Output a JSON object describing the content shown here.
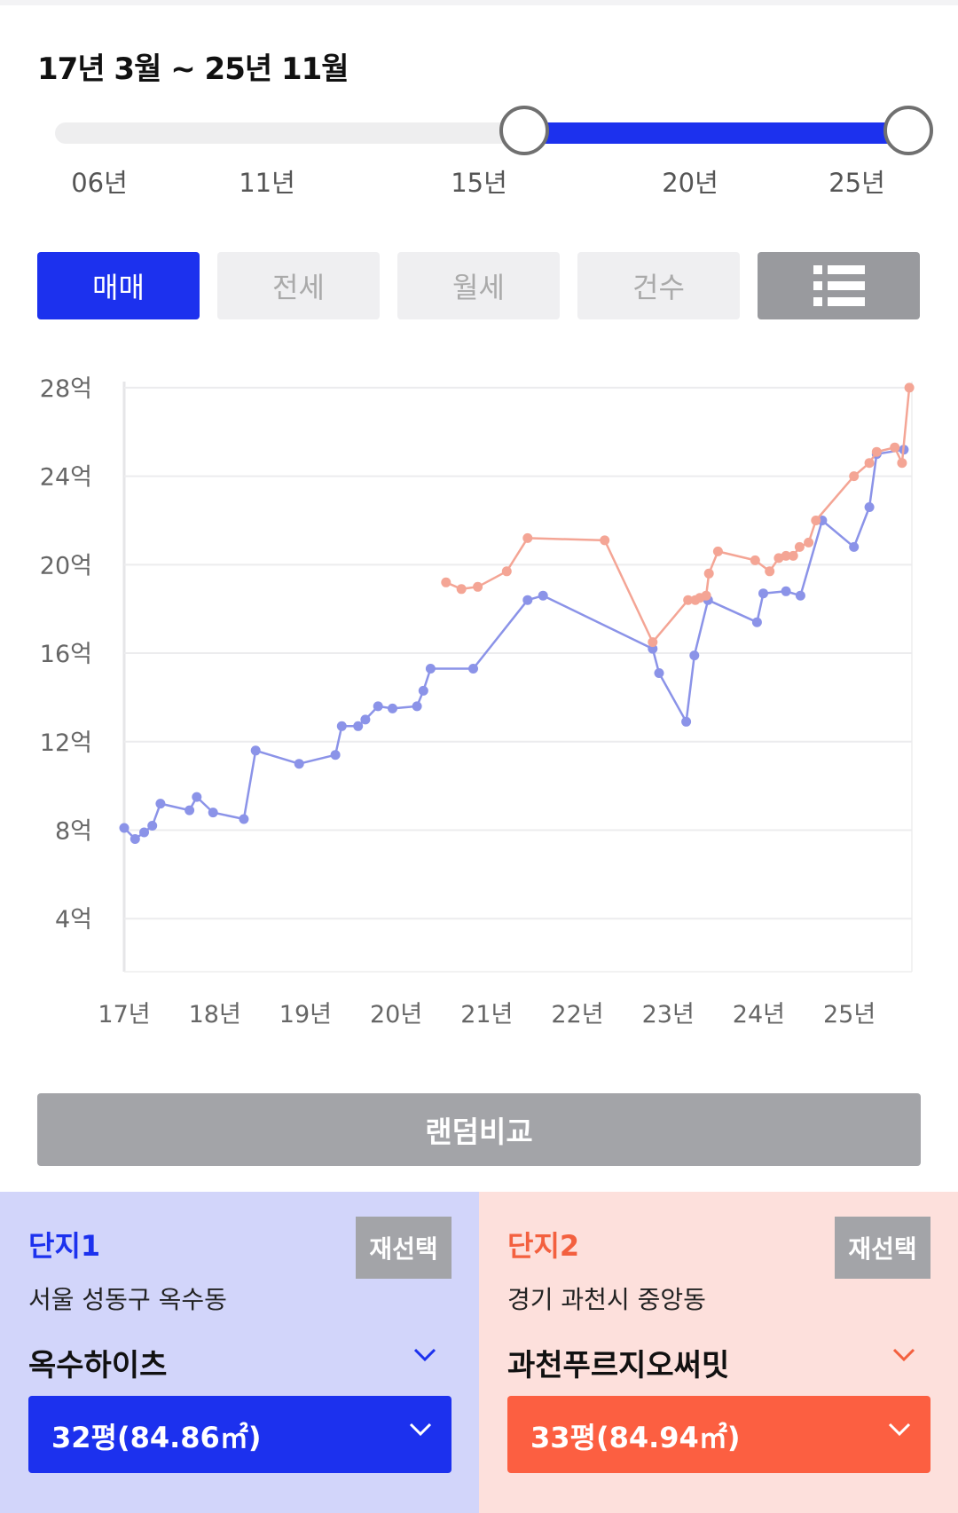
{
  "period_label": "17년 3월 ~ 25년 11월",
  "slider": {
    "labels": [
      "06년",
      "11년",
      "15년",
      "20년",
      "25년"
    ],
    "start_fraction": 0.55,
    "end_fraction": 1.0
  },
  "tabs": [
    {
      "label": "매매",
      "active": true
    },
    {
      "label": "전세",
      "active": false
    },
    {
      "label": "월세",
      "active": false
    },
    {
      "label": "건수",
      "active": false
    }
  ],
  "list_icon": "list-view-icon",
  "colors": {
    "accent": "#1c31ee",
    "accent_orange": "#fc5f41",
    "series1": "#8b93e8",
    "series2": "#f4a595",
    "inactive_tab": "#efeff1",
    "gray_button": "#a3a4a8"
  },
  "chart_data": {
    "type": "line",
    "y_ticks": [
      "28억",
      "24억",
      "20억",
      "16억",
      "12억",
      "8억",
      "4억"
    ],
    "y_tick_values": [
      28,
      24,
      20,
      16,
      12,
      8,
      4
    ],
    "x_ticks": [
      "17년",
      "18년",
      "19년",
      "20년",
      "21년",
      "22년",
      "23년",
      "24년",
      "25년"
    ],
    "x_tick_values": [
      2017,
      2018,
      2019,
      2020,
      2021,
      2022,
      2023,
      2024,
      2025
    ],
    "xlim": [
      2017,
      2025.7
    ],
    "ylim": [
      3,
      29
    ],
    "grid": true,
    "series": [
      {
        "key": "complex1",
        "color": "#8b93e8",
        "points": [
          [
            2017.0,
            8.1
          ],
          [
            2017.12,
            7.6
          ],
          [
            2017.22,
            7.9
          ],
          [
            2017.31,
            8.2
          ],
          [
            2017.4,
            9.2
          ],
          [
            2017.72,
            8.9
          ],
          [
            2017.8,
            9.5
          ],
          [
            2017.98,
            8.8
          ],
          [
            2018.32,
            8.5
          ],
          [
            2018.45,
            11.6
          ],
          [
            2018.93,
            11.0
          ],
          [
            2019.33,
            11.4
          ],
          [
            2019.4,
            12.7
          ],
          [
            2019.58,
            12.7
          ],
          [
            2019.66,
            13.0
          ],
          [
            2019.8,
            13.6
          ],
          [
            2019.96,
            13.5
          ],
          [
            2020.23,
            13.6
          ],
          [
            2020.3,
            14.3
          ],
          [
            2020.38,
            15.3
          ],
          [
            2020.85,
            15.3
          ],
          [
            2021.45,
            18.4
          ],
          [
            2021.62,
            18.6
          ],
          [
            2022.83,
            16.2
          ],
          [
            2022.9,
            15.1
          ],
          [
            2023.2,
            12.9
          ],
          [
            2023.29,
            15.9
          ],
          [
            2023.44,
            18.4
          ],
          [
            2023.98,
            17.4
          ],
          [
            2024.05,
            18.7
          ],
          [
            2024.3,
            18.8
          ],
          [
            2024.46,
            18.6
          ],
          [
            2024.7,
            22.0
          ],
          [
            2025.05,
            20.8
          ],
          [
            2025.22,
            22.6
          ],
          [
            2025.3,
            25.0
          ],
          [
            2025.6,
            25.2
          ]
        ]
      },
      {
        "key": "complex2",
        "color": "#f4a595",
        "points": [
          [
            2020.55,
            19.2
          ],
          [
            2020.72,
            18.9
          ],
          [
            2020.9,
            19.0
          ],
          [
            2021.22,
            19.7
          ],
          [
            2021.45,
            21.2
          ],
          [
            2022.3,
            21.1
          ],
          [
            2022.83,
            16.5
          ],
          [
            2023.22,
            18.4
          ],
          [
            2023.3,
            18.4
          ],
          [
            2023.35,
            18.5
          ],
          [
            2023.42,
            18.6
          ],
          [
            2023.45,
            19.6
          ],
          [
            2023.55,
            20.6
          ],
          [
            2023.96,
            20.2
          ],
          [
            2024.12,
            19.7
          ],
          [
            2024.22,
            20.3
          ],
          [
            2024.3,
            20.4
          ],
          [
            2024.38,
            20.4
          ],
          [
            2024.45,
            20.8
          ],
          [
            2024.55,
            21.0
          ],
          [
            2024.63,
            22.0
          ],
          [
            2025.05,
            24.0
          ],
          [
            2025.22,
            24.6
          ],
          [
            2025.3,
            25.1
          ],
          [
            2025.5,
            25.3
          ],
          [
            2025.58,
            24.6
          ],
          [
            2025.66,
            28.0
          ]
        ]
      }
    ]
  },
  "random_compare_label": "랜덤비교",
  "complex1": {
    "title": "단지1",
    "reselect_label": "재선택",
    "address": "서울 성동구 옥수동",
    "name": "옥수하이츠",
    "size": "32평(84.86㎡)"
  },
  "complex2": {
    "title": "단지2",
    "reselect_label": "재선택",
    "address": "경기 과천시 중앙동",
    "name": "과천푸르지오써밋",
    "size": "33평(84.94㎡)"
  }
}
